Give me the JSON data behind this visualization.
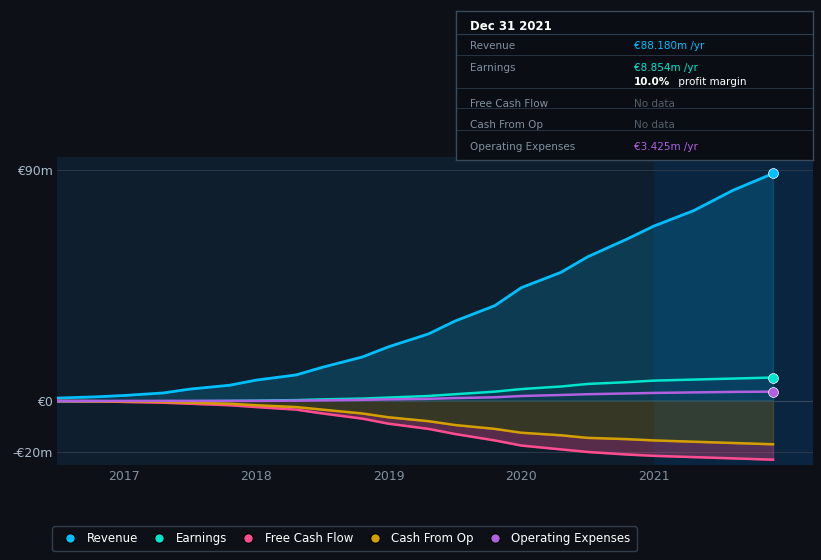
{
  "bg_color": "#0d1117",
  "plot_bg_color": "#0f1e2d",
  "highlight_bg_color": "#0a2540",
  "years": [
    2016.5,
    2016.8,
    2017.0,
    2017.3,
    2017.5,
    2017.8,
    2018.0,
    2018.3,
    2018.5,
    2018.8,
    2019.0,
    2019.3,
    2019.5,
    2019.8,
    2020.0,
    2020.3,
    2020.5,
    2020.8,
    2021.0,
    2021.3,
    2021.6,
    2021.9
  ],
  "revenue": [
    1.0,
    1.5,
    2.0,
    3.0,
    4.5,
    6.0,
    8.0,
    10.0,
    13.0,
    17.0,
    21.0,
    26.0,
    31.0,
    37.0,
    44.0,
    50.0,
    56.0,
    63.0,
    68.0,
    74.0,
    82.0,
    88.5
  ],
  "earnings": [
    -0.3,
    -0.3,
    -0.3,
    -0.2,
    -0.2,
    -0.1,
    0.0,
    0.2,
    0.5,
    0.8,
    1.2,
    1.8,
    2.5,
    3.5,
    4.5,
    5.5,
    6.5,
    7.2,
    7.8,
    8.2,
    8.6,
    9.0
  ],
  "free_cash_flow": [
    -0.2,
    -0.3,
    -0.5,
    -0.8,
    -1.2,
    -1.8,
    -2.5,
    -3.5,
    -5.0,
    -7.0,
    -9.0,
    -11.0,
    -13.0,
    -15.5,
    -17.5,
    -19.0,
    -20.0,
    -21.0,
    -21.5,
    -22.0,
    -22.5,
    -23.0
  ],
  "cash_from_op": [
    -0.1,
    -0.2,
    -0.3,
    -0.5,
    -0.8,
    -1.2,
    -1.8,
    -2.5,
    -3.5,
    -5.0,
    -6.5,
    -8.0,
    -9.5,
    -11.0,
    -12.5,
    -13.5,
    -14.5,
    -15.0,
    -15.5,
    -16.0,
    -16.5,
    -17.0
  ],
  "operating_expenses": [
    -0.1,
    -0.1,
    -0.1,
    -0.1,
    -0.1,
    -0.1,
    -0.1,
    0.0,
    0.1,
    0.3,
    0.5,
    0.7,
    1.0,
    1.3,
    1.8,
    2.2,
    2.5,
    2.8,
    3.0,
    3.2,
    3.4,
    3.5
  ],
  "revenue_color": "#00bfff",
  "earnings_color": "#00e5cc",
  "free_cash_flow_color": "#ff4d8f",
  "cash_from_op_color": "#d4a000",
  "operating_expenses_color": "#b060e0",
  "highlight_x_start": 2021.0,
  "highlight_x_end": 2022.2,
  "ylim": [
    -25,
    95
  ],
  "yticks": [
    -20,
    0,
    90
  ],
  "ytick_labels": [
    "-€20m",
    "€0",
    "€90m"
  ],
  "xticks": [
    2017,
    2018,
    2019,
    2020,
    2021
  ],
  "xlim": [
    2016.5,
    2022.2
  ],
  "info_box": {
    "title": "Dec 31 2021",
    "rows": [
      {
        "label": "Revenue",
        "value": "€88.180m /yr",
        "value_color": "#00bfff",
        "dimmed": false
      },
      {
        "label": "Earnings",
        "value": "€8.854m /yr",
        "value_color": "#00e5cc",
        "dimmed": false
      },
      {
        "label": "",
        "value": "10.0% profit margin",
        "value_color": "#ffffff",
        "dimmed": false,
        "bold_prefix": "10.0%"
      },
      {
        "label": "Free Cash Flow",
        "value": "No data",
        "value_color": "#555f6a",
        "dimmed": true
      },
      {
        "label": "Cash From Op",
        "value": "No data",
        "value_color": "#555f6a",
        "dimmed": true
      },
      {
        "label": "Operating Expenses",
        "value": "€3.425m /yr",
        "value_color": "#b060e0",
        "dimmed": false
      }
    ]
  },
  "legend_items": [
    {
      "label": "Revenue",
      "color": "#00bfff"
    },
    {
      "label": "Earnings",
      "color": "#00e5cc"
    },
    {
      "label": "Free Cash Flow",
      "color": "#ff4d8f"
    },
    {
      "label": "Cash From Op",
      "color": "#d4a000"
    },
    {
      "label": "Operating Expenses",
      "color": "#b060e0"
    }
  ]
}
